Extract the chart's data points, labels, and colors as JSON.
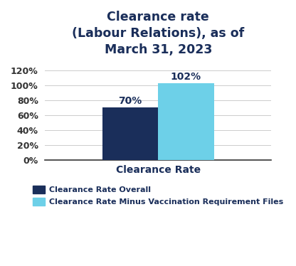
{
  "title": "Clearance rate\n(Labour Relations), as of\nMarch 31, 2023",
  "title_color": "#1a2e5a",
  "title_fontsize": 12.5,
  "title_fontweight": "bold",
  "series": [
    {
      "label": "Clearance Rate Overall",
      "value": 70,
      "color": "#1a2e5a"
    },
    {
      "label": "Clearance Rate Minus Vaccination Requirement Files",
      "value": 102,
      "color": "#6dd0e8"
    }
  ],
  "bar_width": 0.42,
  "bar_gap": 0.0,
  "xlabel": "Clearance Rate",
  "xlabel_fontsize": 10,
  "xlabel_fontweight": "bold",
  "xlabel_color": "#1a2e5a",
  "yticks": [
    0,
    20,
    40,
    60,
    80,
    100,
    120
  ],
  "yticklabels": [
    "0%",
    "20%",
    "40%",
    "60%",
    "80%",
    "100%",
    "120%"
  ],
  "ylim": [
    0,
    132
  ],
  "bar_label_fontsize": 10,
  "bar_label_fontweight": "bold",
  "bar_label_color": "#1a2e5a",
  "legend_fontsize": 8,
  "legend_color": "#1a2e5a",
  "grid_color": "#cccccc",
  "background_color": "#ffffff",
  "tick_color": "#333333"
}
